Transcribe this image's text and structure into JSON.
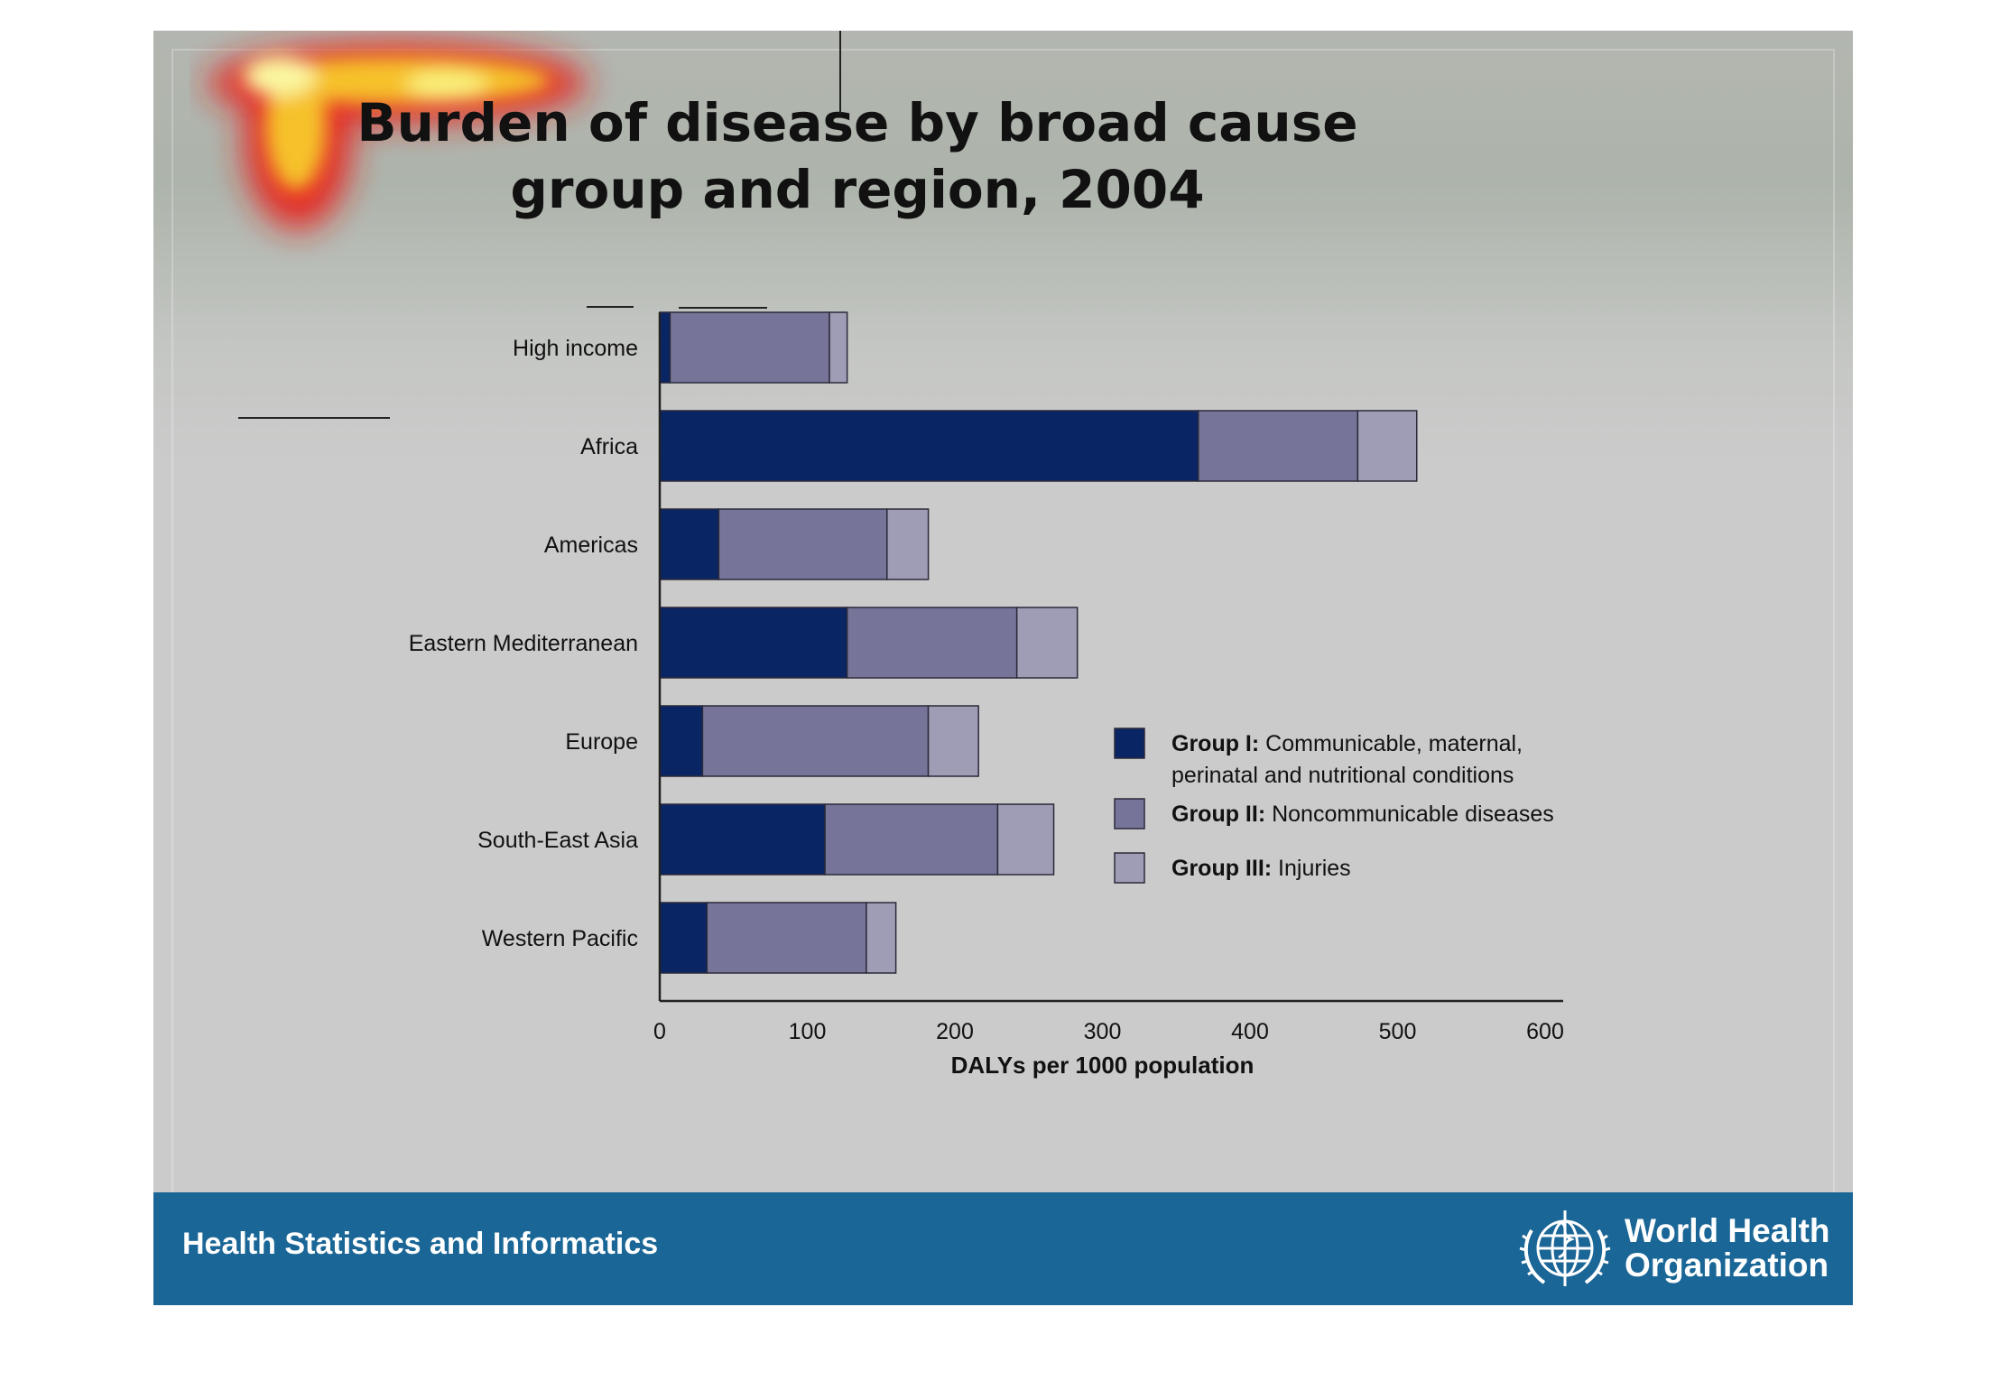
{
  "slide": {
    "title": "Burden of disease by broad cause group and region, 2004",
    "footer_text": "Health Statistics and Informatics",
    "org_name_line1": "World Health",
    "org_name_line2": "Organization",
    "colors": {
      "footer": "#1a6696",
      "group1": "#0a2563",
      "group2": "#767599",
      "group3": "#9f9db6"
    }
  },
  "chart_data": {
    "type": "bar",
    "orientation": "horizontal",
    "stacked": true,
    "categories": [
      "High income",
      "Africa",
      "Americas",
      "Eastern Mediterranean",
      "Europe",
      "South-East Asia",
      "Western Pacific"
    ],
    "series": [
      {
        "name": "Group I: Communicable, maternal, perinatal and nutritional conditions",
        "values": [
          7,
          365,
          40,
          127,
          29,
          112,
          32
        ]
      },
      {
        "name": "Group II: Noncommunicable diseases",
        "values": [
          108,
          108,
          114,
          115,
          153,
          117,
          108
        ]
      },
      {
        "name": "Group III: Injuries",
        "values": [
          12,
          40,
          28,
          41,
          34,
          38,
          20
        ]
      }
    ],
    "legend": [
      {
        "bold": "Group I:",
        "text": "Communicable, maternal,",
        "text2": "perinatal and nutritional conditions"
      },
      {
        "bold": "Group II:",
        "text": "Noncommunicable diseases",
        "text2": ""
      },
      {
        "bold": "Group III:",
        "text": "Injuries",
        "text2": ""
      }
    ],
    "xlabel": "DALYs per 1000 population",
    "xlim": [
      0,
      600
    ],
    "xticks": [
      0,
      100,
      200,
      300,
      400,
      500,
      600
    ],
    "legend_position": "right",
    "grid": false
  }
}
